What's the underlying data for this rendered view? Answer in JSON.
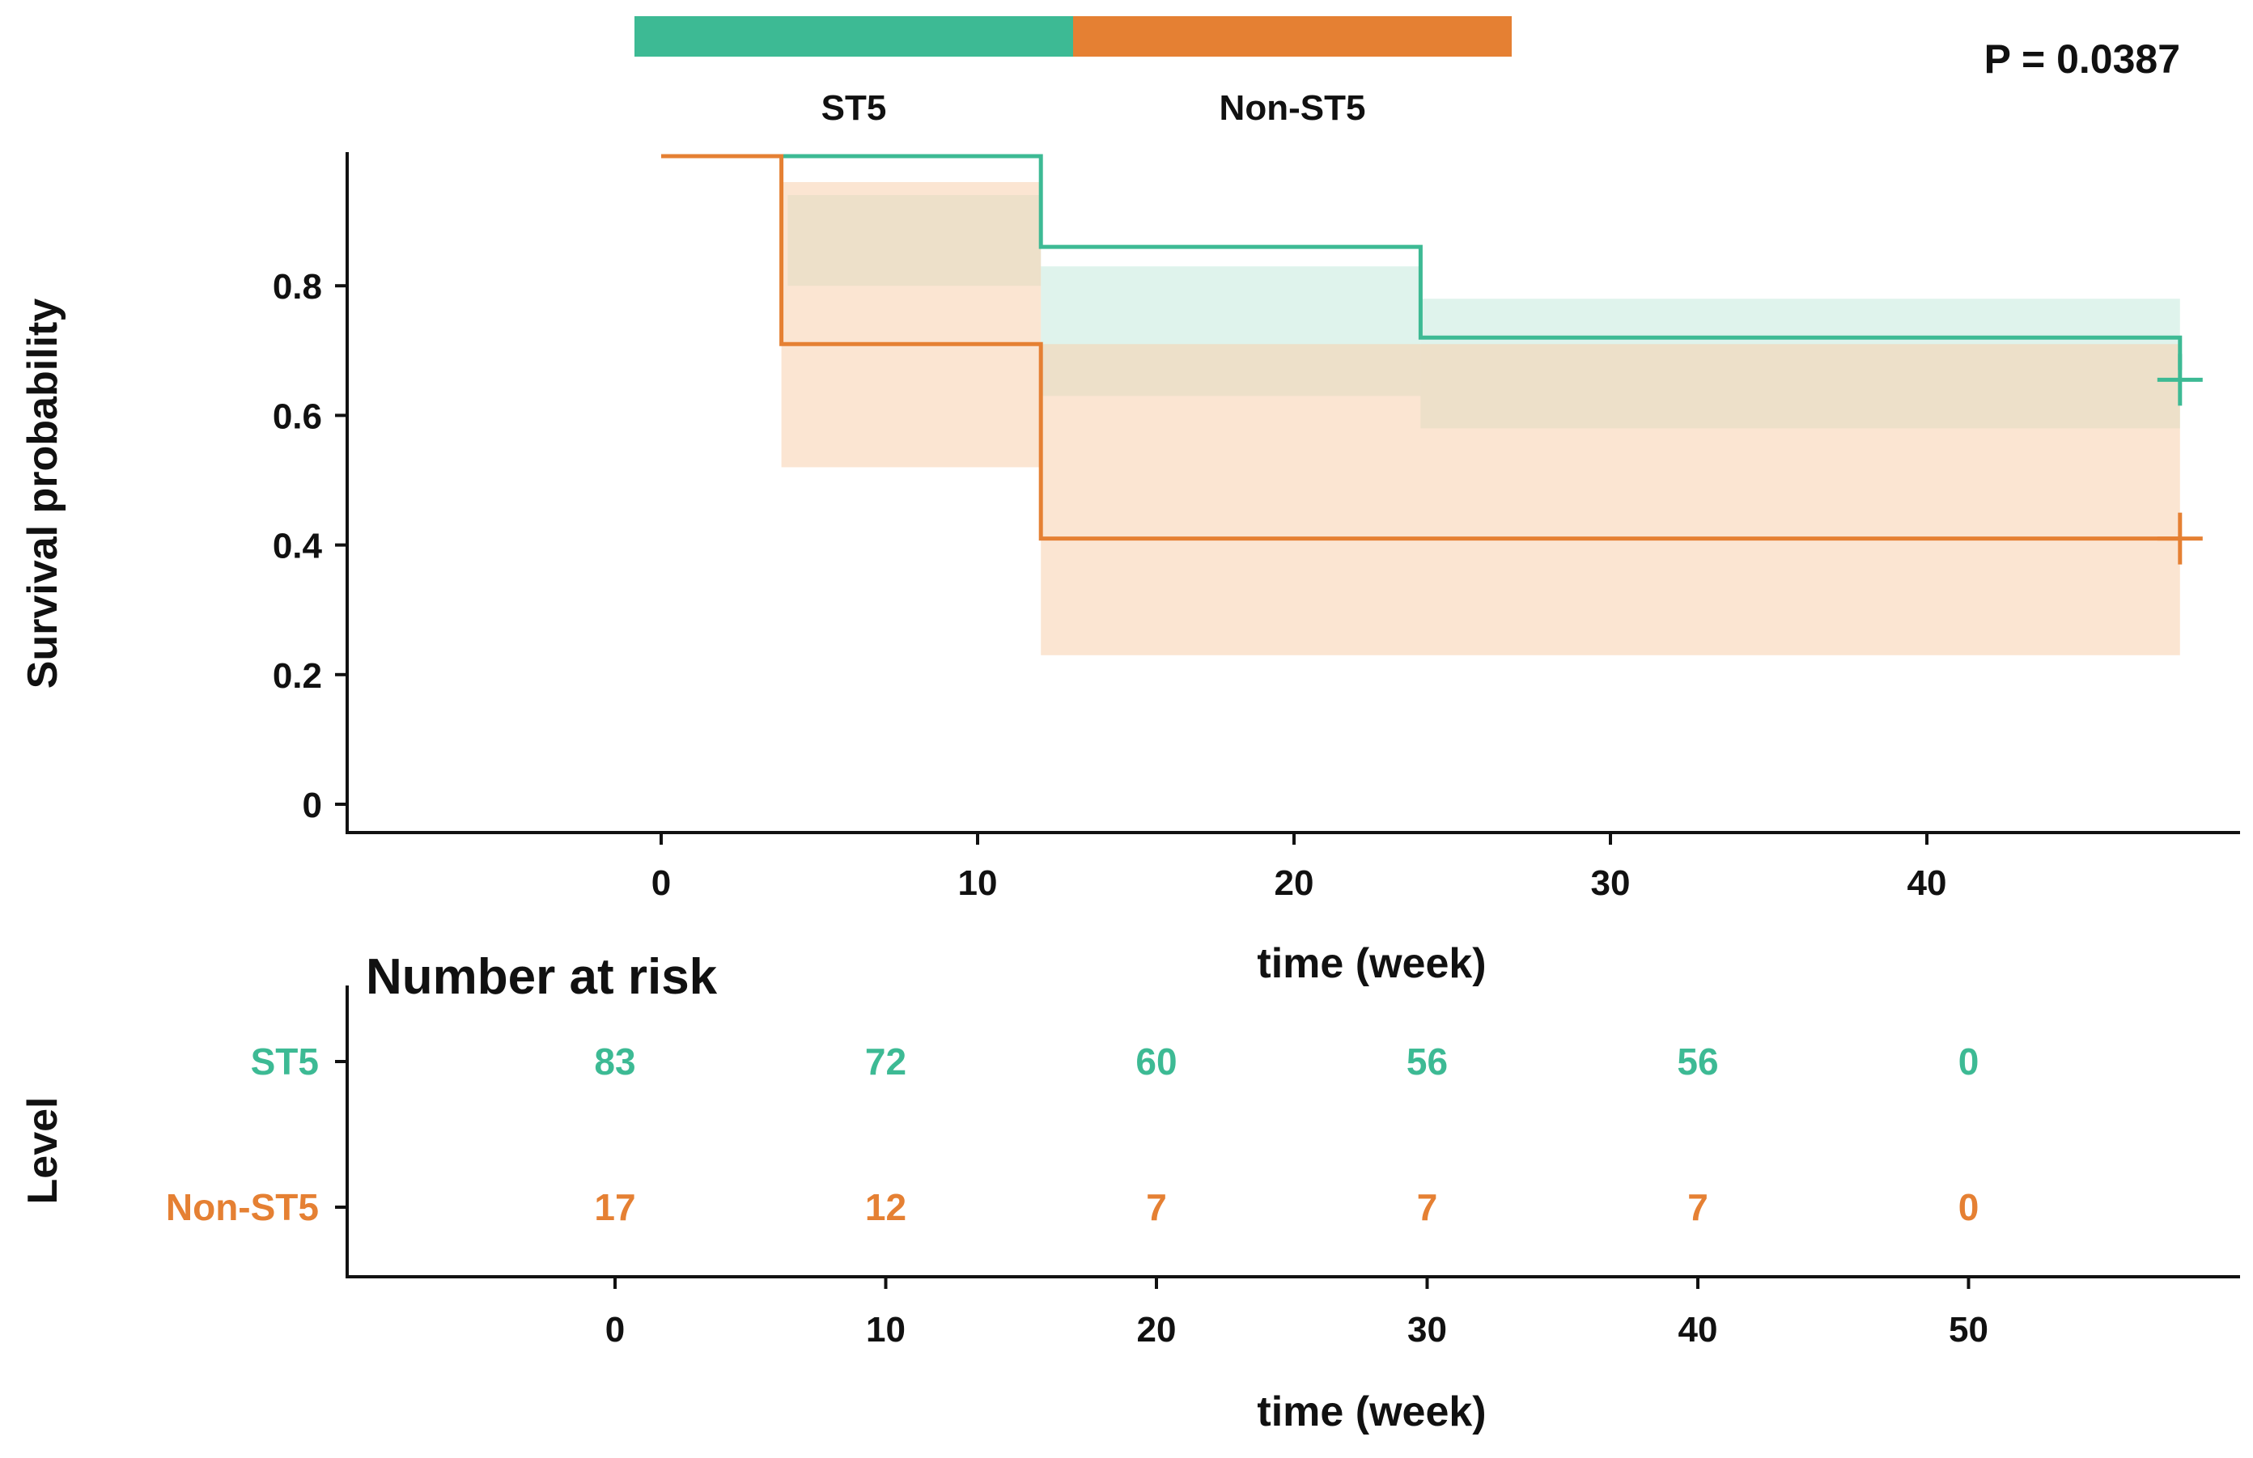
{
  "legend": {
    "items": [
      {
        "label": "ST5",
        "color": "#3dba94"
      },
      {
        "label": "Non-ST5",
        "color": "#e58033"
      }
    ]
  },
  "p_value_label": "P = 0.0387",
  "chart_data": [
    {
      "type": "line",
      "subtype": "kaplan-meier",
      "xlabel": "time (week)",
      "ylabel": "Survival probability",
      "xlim": [
        -10,
        50
      ],
      "ylim": [
        0,
        1
      ],
      "x_ticks": [
        0,
        10,
        20,
        30,
        40
      ],
      "y_ticks": [
        0,
        0.2,
        0.4,
        0.6,
        0.8
      ],
      "y_tick_labels": [
        "0",
        "0.2",
        "0.4",
        "0.6",
        "0.8"
      ],
      "grid": false,
      "legend_position": "top",
      "series": [
        {
          "name": "ST5",
          "color": "#3dba94",
          "band_color": "#c4e9dc",
          "steps": [
            [
              0,
              1.0
            ],
            [
              4,
              1.0
            ],
            [
              12,
              0.86
            ],
            [
              24,
              0.72
            ],
            [
              48,
              0.67
            ]
          ],
          "ci_steps": [
            [
              4,
              0.94,
              0.8
            ],
            [
              12,
              0.83,
              0.63
            ],
            [
              24,
              0.78,
              0.58
            ]
          ],
          "end_x": 48,
          "censor": [
            [
              48,
              0.655
            ]
          ]
        },
        {
          "name": "Non-ST5",
          "color": "#e58033",
          "band_color": "#f7cfad",
          "steps": [
            [
              0,
              1.0
            ],
            [
              3.8,
              0.71
            ],
            [
              12,
              0.41
            ],
            [
              48,
              0.41
            ]
          ],
          "ci_steps": [
            [
              3.8,
              0.96,
              0.52
            ],
            [
              12,
              0.71,
              0.23
            ]
          ],
          "end_x": 48,
          "censor": [
            [
              48,
              0.41
            ]
          ]
        }
      ]
    },
    {
      "type": "table",
      "title": "Number at risk",
      "xlabel": "time (week)",
      "ylabel": "Level",
      "x_ticks": [
        0,
        10,
        20,
        30,
        40,
        50
      ],
      "rows": [
        {
          "label": "ST5",
          "color": "#3dba94",
          "values": [
            "83",
            "72",
            "60",
            "56",
            "56",
            "0"
          ]
        },
        {
          "label": "Non-ST5",
          "color": "#e58033",
          "values": [
            "17",
            "12",
            "7",
            "7",
            "7",
            "0"
          ]
        }
      ]
    }
  ]
}
